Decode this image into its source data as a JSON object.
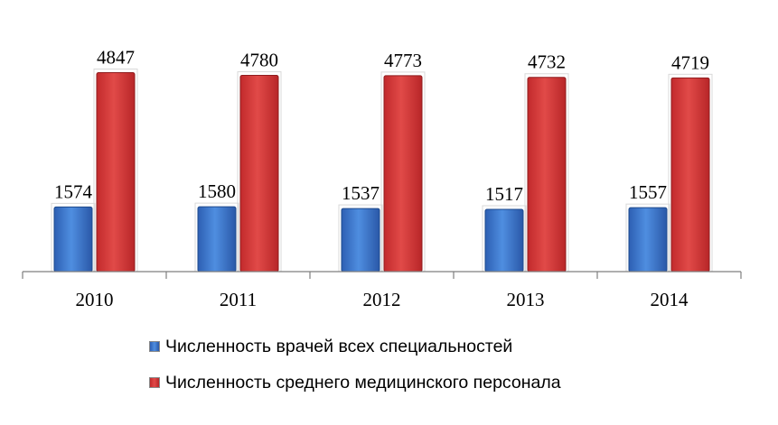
{
  "colors": {
    "series1": "#3a6fc4",
    "series2": "#d2393a",
    "axis": "#7f7f7f"
  },
  "chart_data": {
    "type": "bar",
    "title": "",
    "xlabel": "",
    "ylabel": "",
    "categories": [
      "2010",
      "2011",
      "2012",
      "2013",
      "2014"
    ],
    "ylim": [
      0,
      5000
    ],
    "grid": false,
    "legend_position": "bottom",
    "series": [
      {
        "name": "Численность врачей всех специальностей",
        "values": [
          1574,
          1580,
          1537,
          1517,
          1557
        ]
      },
      {
        "name": "Численность среднего медицинского персонала",
        "values": [
          4847,
          4780,
          4773,
          4732,
          4719
        ]
      }
    ]
  }
}
